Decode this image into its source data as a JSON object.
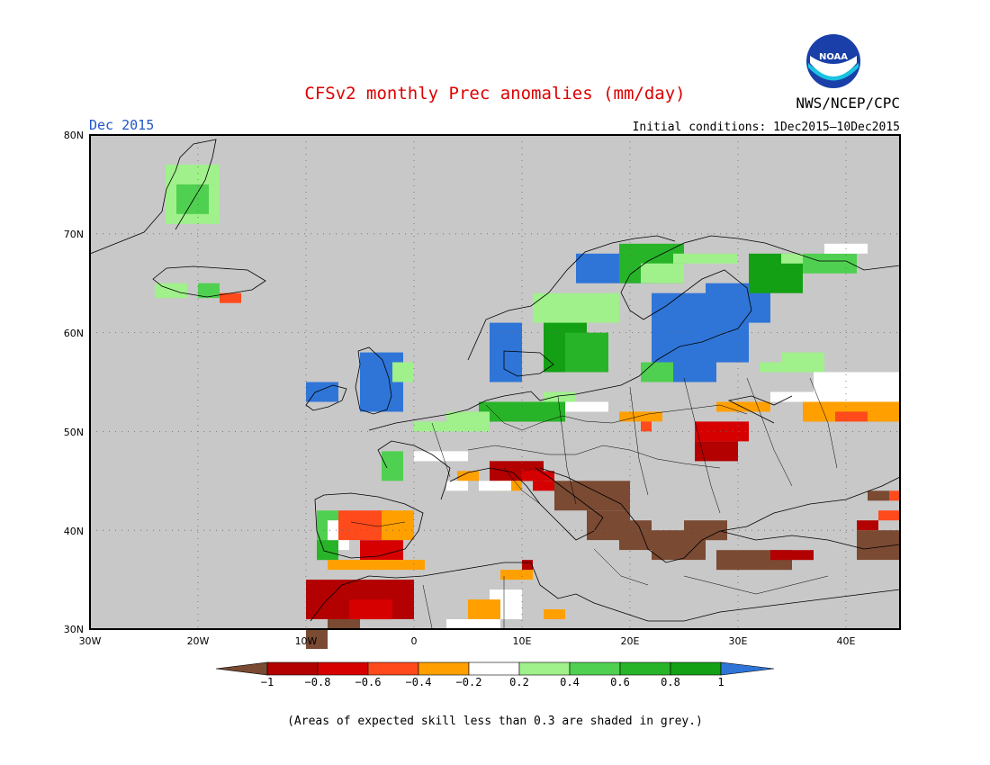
{
  "header": {
    "title": "CFSv2 monthly Prec anomalies (mm/day)",
    "agency": "NWS/NCEP/CPC",
    "logo_text": "NOAA",
    "month": "Dec 2015",
    "initial_conditions": "Initial conditions: 1Dec2015—10Dec2015"
  },
  "axes": {
    "lat_labels": [
      "80N",
      "70N",
      "60N",
      "50N",
      "40N",
      "30N"
    ],
    "lon_labels": [
      "30W",
      "20W",
      "10W",
      "0",
      "10E",
      "20E",
      "30E",
      "40E"
    ]
  },
  "colorbar": {
    "labels": [
      "−1",
      "−0.8",
      "−0.6",
      "−0.4",
      "−0.2",
      "0.2",
      "0.4",
      "0.6",
      "0.8",
      "1"
    ],
    "colors": [
      "#7a4a32",
      "#b30000",
      "#d60000",
      "#ff4a1c",
      "#ffa000",
      "#ffffff",
      "#a0f08c",
      "#50d050",
      "#28b428",
      "#14a014",
      "#2f75d8"
    ]
  },
  "footnote": "(Areas of expected skill less than 0.3 are shaded in grey.)",
  "colors": {
    "title": "#dd0000",
    "month": "#2255cc",
    "land_grey": "#c8c8c8"
  }
}
